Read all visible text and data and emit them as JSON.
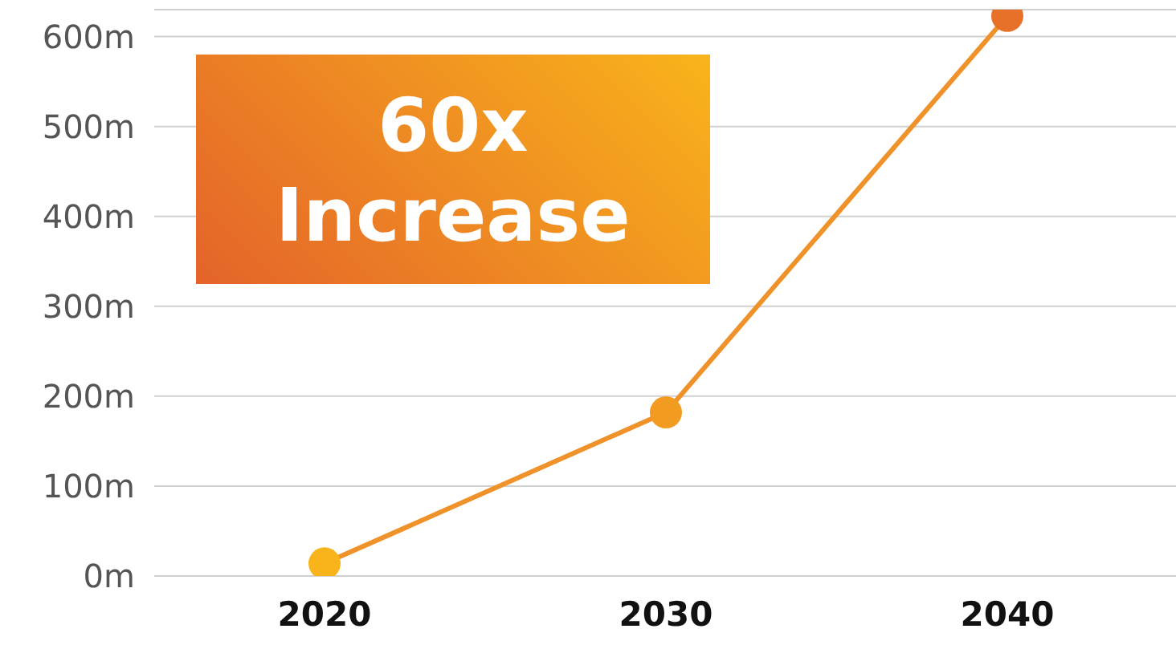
{
  "chart_data": {
    "type": "line",
    "categories": [
      "2020",
      "2030",
      "2040"
    ],
    "series": [
      {
        "color": "#f0922a",
        "values": [
          14,
          182,
          623
        ],
        "colors": [
          "#f9b41b",
          "#f29b21",
          "#e8712a"
        ]
      }
    ],
    "ylim": [
      0,
      630
    ],
    "yticks": [
      {
        "value": 0,
        "label": "0m"
      },
      {
        "value": 100,
        "label": "100m"
      },
      {
        "value": 200,
        "label": "200m"
      },
      {
        "value": 300,
        "label": "300m"
      },
      {
        "value": 400,
        "label": "400m"
      },
      {
        "value": 500,
        "label": "500m"
      },
      {
        "value": 600,
        "label": "600m"
      }
    ],
    "grid": "y",
    "marker": "circle",
    "line_style": "solid",
    "legend": false,
    "annotations": [
      "60x Increase"
    ]
  }
}
